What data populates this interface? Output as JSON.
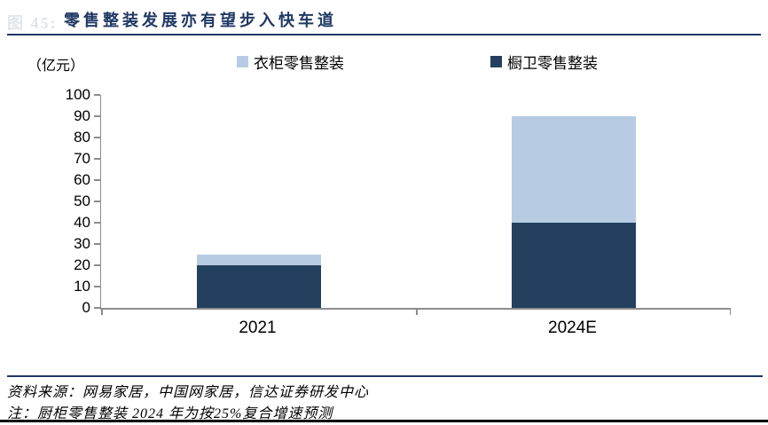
{
  "figure": {
    "number_watermark": "图 45:",
    "title": "零售整装发展亦有望步入快车道",
    "unit_label": "（亿元）",
    "source": "资料来源：网易家居，中国网家居，信达证券研发中心",
    "footnote": "注：厨柜零售整装 2024 年为按25%复合增速预测"
  },
  "colors": {
    "title_navy": "#1f3864",
    "axis_gray": "#8c8c8c",
    "kitchen_bath_dark": "#24405f",
    "wardrobe_light": "#b7cbe3"
  },
  "chart_data": {
    "type": "bar",
    "subtype": "stacked",
    "title": "零售整装发展亦有望步入快车道",
    "ylabel": "（亿元）",
    "categories": [
      "2021",
      "2024E"
    ],
    "series": [
      {
        "name": "橱卫零售整装",
        "color": "#24405f",
        "values": [
          20,
          40
        ]
      },
      {
        "name": "衣柜零售整装",
        "color": "#b7cbe3",
        "values": [
          5,
          50
        ]
      }
    ],
    "totals": [
      25,
      90
    ],
    "legend_order": [
      "衣柜零售整装",
      "橱卫零售整装"
    ],
    "legend_position": "top",
    "ylim": [
      0,
      100
    ],
    "ytick_step": 10,
    "grid": false
  }
}
